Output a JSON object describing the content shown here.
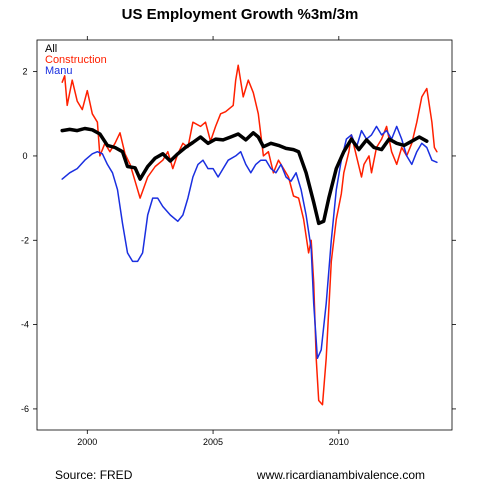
{
  "chart_data": {
    "type": "line",
    "title": "US Employment Growth %3m/3m",
    "xlabel": "",
    "ylabel": "",
    "xlim": [
      1998.0,
      2014.5
    ],
    "ylim": [
      -6.5,
      2.75
    ],
    "x_ticks": [
      2000,
      2005,
      2010
    ],
    "y_ticks": [
      2,
      0,
      -2,
      -4,
      -6
    ],
    "legend_position": "top-left",
    "series": [
      {
        "name": "All",
        "color": "#000000",
        "stroke_width": 3.5,
        "points": [
          [
            1999.0,
            0.6
          ],
          [
            1999.3,
            0.63
          ],
          [
            1999.6,
            0.6
          ],
          [
            1999.9,
            0.65
          ],
          [
            2000.2,
            0.62
          ],
          [
            2000.5,
            0.52
          ],
          [
            2000.8,
            0.25
          ],
          [
            2001.1,
            0.2
          ],
          [
            2001.4,
            0.1
          ],
          [
            2001.6,
            -0.25
          ],
          [
            2001.9,
            -0.28
          ],
          [
            2002.1,
            -0.55
          ],
          [
            2002.4,
            -0.25
          ],
          [
            2002.7,
            -0.05
          ],
          [
            2003.0,
            0.05
          ],
          [
            2003.3,
            -0.12
          ],
          [
            2003.6,
            0.05
          ],
          [
            2003.9,
            0.2
          ],
          [
            2004.2,
            0.32
          ],
          [
            2004.5,
            0.45
          ],
          [
            2004.8,
            0.3
          ],
          [
            2005.1,
            0.4
          ],
          [
            2005.4,
            0.38
          ],
          [
            2005.7,
            0.45
          ],
          [
            2006.0,
            0.52
          ],
          [
            2006.3,
            0.38
          ],
          [
            2006.6,
            0.55
          ],
          [
            2006.8,
            0.45
          ],
          [
            2007.0,
            0.22
          ],
          [
            2007.3,
            0.3
          ],
          [
            2007.6,
            0.25
          ],
          [
            2007.9,
            0.18
          ],
          [
            2008.2,
            0.15
          ],
          [
            2008.4,
            0.1
          ],
          [
            2008.7,
            -0.4
          ],
          [
            2009.0,
            -1.1
          ],
          [
            2009.2,
            -1.6
          ],
          [
            2009.4,
            -1.55
          ],
          [
            2009.6,
            -1.0
          ],
          [
            2009.9,
            -0.3
          ],
          [
            2010.2,
            0.1
          ],
          [
            2010.5,
            0.4
          ],
          [
            2010.8,
            0.15
          ],
          [
            2011.1,
            0.38
          ],
          [
            2011.4,
            0.2
          ],
          [
            2011.7,
            0.15
          ],
          [
            2012.0,
            0.4
          ],
          [
            2012.3,
            0.3
          ],
          [
            2012.6,
            0.25
          ],
          [
            2012.9,
            0.35
          ],
          [
            2013.2,
            0.45
          ],
          [
            2013.5,
            0.35
          ]
        ]
      },
      {
        "name": "Construction",
        "color": "#ff2000",
        "stroke_width": 1.5,
        "points": [
          [
            1999.0,
            1.75
          ],
          [
            1999.1,
            1.9
          ],
          [
            1999.2,
            1.2
          ],
          [
            1999.4,
            1.8
          ],
          [
            1999.6,
            1.3
          ],
          [
            1999.8,
            1.1
          ],
          [
            2000.0,
            1.55
          ],
          [
            2000.2,
            1.0
          ],
          [
            2000.4,
            0.8
          ],
          [
            2000.5,
            0.0
          ],
          [
            2000.7,
            0.3
          ],
          [
            2000.9,
            0.1
          ],
          [
            2001.1,
            0.3
          ],
          [
            2001.3,
            0.55
          ],
          [
            2001.5,
            0.05
          ],
          [
            2001.7,
            -0.2
          ],
          [
            2001.9,
            -0.6
          ],
          [
            2002.1,
            -1.0
          ],
          [
            2002.4,
            -0.5
          ],
          [
            2002.7,
            -0.25
          ],
          [
            2003.0,
            -0.1
          ],
          [
            2003.2,
            0.1
          ],
          [
            2003.4,
            -0.3
          ],
          [
            2003.6,
            0.05
          ],
          [
            2003.8,
            0.3
          ],
          [
            2004.0,
            0.2
          ],
          [
            2004.2,
            0.8
          ],
          [
            2004.5,
            0.7
          ],
          [
            2004.7,
            0.8
          ],
          [
            2004.9,
            0.35
          ],
          [
            2005.1,
            0.7
          ],
          [
            2005.3,
            1.0
          ],
          [
            2005.5,
            1.05
          ],
          [
            2005.8,
            1.2
          ],
          [
            2005.9,
            1.8
          ],
          [
            2006.0,
            2.15
          ],
          [
            2006.2,
            1.4
          ],
          [
            2006.4,
            1.8
          ],
          [
            2006.6,
            1.5
          ],
          [
            2006.8,
            1.0
          ],
          [
            2007.0,
            0.0
          ],
          [
            2007.2,
            0.1
          ],
          [
            2007.4,
            -0.4
          ],
          [
            2007.6,
            -0.1
          ],
          [
            2007.8,
            -0.3
          ],
          [
            2008.0,
            -0.5
          ],
          [
            2008.2,
            -0.95
          ],
          [
            2008.4,
            -1.0
          ],
          [
            2008.6,
            -1.5
          ],
          [
            2008.8,
            -2.3
          ],
          [
            2008.9,
            -2.0
          ],
          [
            2009.0,
            -3.0
          ],
          [
            2009.1,
            -4.8
          ],
          [
            2009.2,
            -5.8
          ],
          [
            2009.35,
            -5.9
          ],
          [
            2009.5,
            -4.8
          ],
          [
            2009.7,
            -2.5
          ],
          [
            2009.9,
            -1.5
          ],
          [
            2010.1,
            -0.9
          ],
          [
            2010.2,
            -0.4
          ],
          [
            2010.4,
            0.1
          ],
          [
            2010.5,
            0.5
          ],
          [
            2010.7,
            0.0
          ],
          [
            2010.9,
            -0.5
          ],
          [
            2011.0,
            -0.2
          ],
          [
            2011.2,
            0.0
          ],
          [
            2011.3,
            -0.4
          ],
          [
            2011.5,
            0.2
          ],
          [
            2011.7,
            0.4
          ],
          [
            2011.9,
            0.7
          ],
          [
            2012.1,
            0.1
          ],
          [
            2012.3,
            -0.2
          ],
          [
            2012.5,
            0.2
          ],
          [
            2012.7,
            0.0
          ],
          [
            2012.9,
            0.3
          ],
          [
            2013.1,
            0.8
          ],
          [
            2013.3,
            1.4
          ],
          [
            2013.5,
            1.6
          ],
          [
            2013.7,
            0.8
          ],
          [
            2013.8,
            0.2
          ],
          [
            2013.9,
            0.1
          ]
        ]
      },
      {
        "name": "Manu",
        "color": "#1a2fe0",
        "stroke_width": 1.5,
        "points": [
          [
            1999.0,
            -0.55
          ],
          [
            1999.3,
            -0.4
          ],
          [
            1999.6,
            -0.3
          ],
          [
            1999.9,
            -0.1
          ],
          [
            2000.2,
            0.05
          ],
          [
            2000.4,
            0.1
          ],
          [
            2000.6,
            0.05
          ],
          [
            2000.8,
            -0.2
          ],
          [
            2001.0,
            -0.4
          ],
          [
            2001.2,
            -0.8
          ],
          [
            2001.4,
            -1.6
          ],
          [
            2001.6,
            -2.3
          ],
          [
            2001.8,
            -2.5
          ],
          [
            2002.0,
            -2.5
          ],
          [
            2002.2,
            -2.3
          ],
          [
            2002.4,
            -1.4
          ],
          [
            2002.6,
            -1.0
          ],
          [
            2002.8,
            -1.0
          ],
          [
            2003.0,
            -1.2
          ],
          [
            2003.3,
            -1.4
          ],
          [
            2003.6,
            -1.55
          ],
          [
            2003.8,
            -1.4
          ],
          [
            2004.0,
            -1.0
          ],
          [
            2004.2,
            -0.5
          ],
          [
            2004.4,
            -0.2
          ],
          [
            2004.6,
            -0.1
          ],
          [
            2004.8,
            -0.3
          ],
          [
            2005.0,
            -0.3
          ],
          [
            2005.2,
            -0.5
          ],
          [
            2005.4,
            -0.3
          ],
          [
            2005.6,
            -0.1
          ],
          [
            2005.9,
            0.0
          ],
          [
            2006.1,
            0.1
          ],
          [
            2006.3,
            -0.2
          ],
          [
            2006.5,
            -0.4
          ],
          [
            2006.7,
            -0.2
          ],
          [
            2006.9,
            -0.1
          ],
          [
            2007.1,
            -0.1
          ],
          [
            2007.3,
            -0.3
          ],
          [
            2007.5,
            -0.4
          ],
          [
            2007.7,
            -0.2
          ],
          [
            2007.9,
            -0.5
          ],
          [
            2008.1,
            -0.6
          ],
          [
            2008.3,
            -0.4
          ],
          [
            2008.5,
            -0.8
          ],
          [
            2008.7,
            -1.4
          ],
          [
            2008.9,
            -2.2
          ],
          [
            2009.0,
            -3.5
          ],
          [
            2009.15,
            -4.8
          ],
          [
            2009.3,
            -4.6
          ],
          [
            2009.5,
            -3.5
          ],
          [
            2009.7,
            -2.0
          ],
          [
            2009.9,
            -0.8
          ],
          [
            2010.1,
            -0.1
          ],
          [
            2010.3,
            0.4
          ],
          [
            2010.5,
            0.5
          ],
          [
            2010.7,
            0.2
          ],
          [
            2010.9,
            0.6
          ],
          [
            2011.1,
            0.4
          ],
          [
            2011.3,
            0.5
          ],
          [
            2011.5,
            0.7
          ],
          [
            2011.7,
            0.5
          ],
          [
            2011.9,
            0.6
          ],
          [
            2012.1,
            0.4
          ],
          [
            2012.3,
            0.7
          ],
          [
            2012.5,
            0.4
          ],
          [
            2012.7,
            0.0
          ],
          [
            2012.9,
            -0.2
          ],
          [
            2013.1,
            0.1
          ],
          [
            2013.3,
            0.3
          ],
          [
            2013.5,
            0.2
          ],
          [
            2013.7,
            -0.1
          ],
          [
            2013.9,
            -0.15
          ]
        ]
      }
    ]
  },
  "footer": {
    "source": "Source: FRED",
    "website": "www.ricardianambivalence.com"
  }
}
